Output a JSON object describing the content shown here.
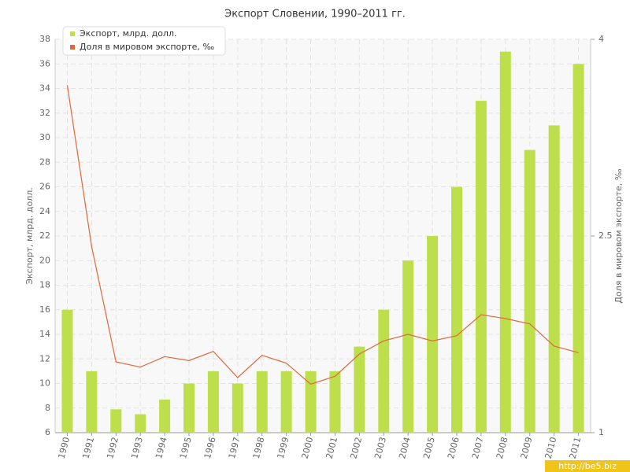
{
  "chart_data": {
    "type": "bar-line",
    "title": "Экспорт Словении, 1990–2011 гг.",
    "y_label": "Экспорт, млрд. долл.",
    "y2_label": "Доля в мировом экспорте, ‰",
    "categories": [
      "1990",
      "1991",
      "1992",
      "1993",
      "1994",
      "1995",
      "1996",
      "1997",
      "1998",
      "1999",
      "2000",
      "2001",
      "2002",
      "2003",
      "2004",
      "2005",
      "2006",
      "2007",
      "2008",
      "2009",
      "2010",
      "2011"
    ],
    "series": [
      {
        "name": "Экспорт, млрд. долл.",
        "type": "bar",
        "color": "#bedf4c",
        "values": [
          16,
          11,
          7.9,
          7.5,
          8.7,
          10,
          11,
          10,
          11,
          11,
          11,
          11,
          13,
          16,
          20,
          22,
          26,
          33,
          37,
          29,
          31,
          36
        ]
      },
      {
        "name": "Доля в мировом экспорте, ‰",
        "type": "line",
        "axis": "y2",
        "color": "#e0683a",
        "values": [
          3.65,
          2.42,
          1.54,
          1.5,
          1.58,
          1.55,
          1.62,
          1.42,
          1.59,
          1.53,
          1.37,
          1.43,
          1.6,
          1.7,
          1.75,
          1.7,
          1.74,
          1.9,
          1.87,
          1.83,
          1.66,
          1.61
        ]
      }
    ],
    "ylim": [
      6,
      38
    ],
    "yticks": [
      6,
      8,
      10,
      12,
      14,
      16,
      18,
      20,
      22,
      24,
      26,
      28,
      30,
      32,
      34,
      36,
      38
    ],
    "y2lim": [
      1,
      4
    ],
    "y2ticks": [
      1,
      2.5,
      4
    ],
    "grid": true,
    "legend": "top-left",
    "watermark": "http://be5.biz"
  }
}
